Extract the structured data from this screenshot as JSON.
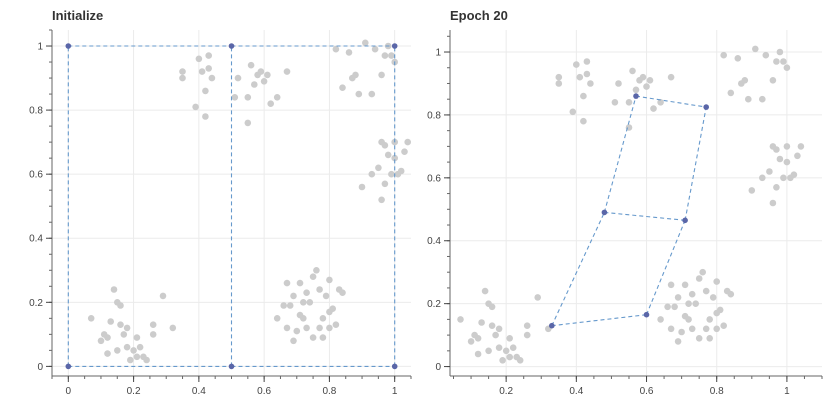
{
  "chart_data": [
    {
      "type": "scatter",
      "title": "Initialize",
      "xlabel": "",
      "ylabel": "",
      "xlim": [
        -0.05,
        1.05
      ],
      "ylim": [
        -0.03,
        1.05
      ],
      "xticks": [
        "0",
        "0.2",
        "0.4",
        "0.6",
        "0.8",
        "1"
      ],
      "yticks": [
        "0",
        "0.2",
        "0.4",
        "0.6",
        "0.8",
        "1"
      ],
      "grid": true,
      "colors": {
        "points": "#cccccc",
        "nodes": "#5a66a8",
        "lattice": "#6699cc"
      },
      "points": [
        [
          0.07,
          0.15
        ],
        [
          0.1,
          0.08
        ],
        [
          0.12,
          0.04
        ],
        [
          0.13,
          0.14
        ],
        [
          0.14,
          0.24
        ],
        [
          0.15,
          0.2
        ],
        [
          0.16,
          0.13
        ],
        [
          0.17,
          0.1
        ],
        [
          0.18,
          0.06
        ],
        [
          0.2,
          0.05
        ],
        [
          0.21,
          0.03
        ],
        [
          0.22,
          0.06
        ],
        [
          0.23,
          0.03
        ],
        [
          0.19,
          0.02
        ],
        [
          0.15,
          0.05
        ],
        [
          0.12,
          0.09
        ],
        [
          0.18,
          0.12
        ],
        [
          0.21,
          0.09
        ],
        [
          0.26,
          0.13
        ],
        [
          0.29,
          0.22
        ],
        [
          0.32,
          0.12
        ],
        [
          0.26,
          0.1
        ],
        [
          0.11,
          0.1
        ],
        [
          0.16,
          0.19
        ],
        [
          0.24,
          0.02
        ],
        [
          0.35,
          0.92
        ],
        [
          0.35,
          0.9
        ],
        [
          0.39,
          0.81
        ],
        [
          0.4,
          0.96
        ],
        [
          0.42,
          0.86
        ],
        [
          0.42,
          0.78
        ],
        [
          0.43,
          0.93
        ],
        [
          0.41,
          0.92
        ],
        [
          0.44,
          0.9
        ],
        [
          0.43,
          0.97
        ],
        [
          0.51,
          0.84
        ],
        [
          0.52,
          0.9
        ],
        [
          0.55,
          0.84
        ],
        [
          0.55,
          0.76
        ],
        [
          0.57,
          0.88
        ],
        [
          0.56,
          0.94
        ],
        [
          0.59,
          0.92
        ],
        [
          0.6,
          0.89
        ],
        [
          0.61,
          0.91
        ],
        [
          0.62,
          0.82
        ],
        [
          0.64,
          0.84
        ],
        [
          0.67,
          0.92
        ],
        [
          0.58,
          0.91
        ],
        [
          0.82,
          0.99
        ],
        [
          0.84,
          0.87
        ],
        [
          0.86,
          0.98
        ],
        [
          0.87,
          0.9
        ],
        [
          0.88,
          0.91
        ],
        [
          0.89,
          0.85
        ],
        [
          0.91,
          1.01
        ],
        [
          0.93,
          0.85
        ],
        [
          0.94,
          0.99
        ],
        [
          0.96,
          0.91
        ],
        [
          0.97,
          0.97
        ],
        [
          0.98,
          1.0
        ],
        [
          1.0,
          0.95
        ],
        [
          0.99,
          0.97
        ],
        [
          0.9,
          0.56
        ],
        [
          0.93,
          0.6
        ],
        [
          0.95,
          0.62
        ],
        [
          0.96,
          0.52
        ],
        [
          0.96,
          0.7
        ],
        [
          0.97,
          0.57
        ],
        [
          0.98,
          0.66
        ],
        [
          1.0,
          0.65
        ],
        [
          1.01,
          0.6
        ],
        [
          1.02,
          0.61
        ],
        [
          1.03,
          0.67
        ],
        [
          1.04,
          0.7
        ],
        [
          0.97,
          0.69
        ],
        [
          1.0,
          0.7
        ],
        [
          0.99,
          0.6
        ],
        [
          0.64,
          0.15
        ],
        [
          0.66,
          0.19
        ],
        [
          0.67,
          0.26
        ],
        [
          0.67,
          0.12
        ],
        [
          0.68,
          0.19
        ],
        [
          0.69,
          0.22
        ],
        [
          0.7,
          0.11
        ],
        [
          0.71,
          0.16
        ],
        [
          0.71,
          0.26
        ],
        [
          0.72,
          0.15
        ],
        [
          0.73,
          0.23
        ],
        [
          0.73,
          0.12
        ],
        [
          0.74,
          0.2
        ],
        [
          0.75,
          0.28
        ],
        [
          0.76,
          0.3
        ],
        [
          0.77,
          0.12
        ],
        [
          0.77,
          0.24
        ],
        [
          0.78,
          0.09
        ],
        [
          0.78,
          0.15
        ],
        [
          0.79,
          0.22
        ],
        [
          0.8,
          0.12
        ],
        [
          0.8,
          0.27
        ],
        [
          0.81,
          0.18
        ],
        [
          0.82,
          0.13
        ],
        [
          0.83,
          0.24
        ],
        [
          0.84,
          0.23
        ],
        [
          0.69,
          0.08
        ],
        [
          0.75,
          0.09
        ],
        [
          0.8,
          0.17
        ],
        [
          0.72,
          0.2
        ]
      ],
      "nodes": [
        [
          0,
          0
        ],
        [
          0.5,
          0
        ],
        [
          1,
          0
        ],
        [
          0,
          1
        ],
        [
          0.5,
          1
        ],
        [
          1,
          1
        ]
      ],
      "edges": [
        [
          0,
          1
        ],
        [
          1,
          2
        ],
        [
          3,
          4
        ],
        [
          4,
          5
        ],
        [
          0,
          3
        ],
        [
          1,
          4
        ],
        [
          2,
          5
        ]
      ]
    },
    {
      "type": "scatter",
      "title": "Epoch 20",
      "xlabel": "",
      "ylabel": "",
      "xlim": [
        0.04,
        1.1
      ],
      "ylim": [
        -0.03,
        1.07
      ],
      "xticks": [
        "0.2",
        "0.4",
        "0.6",
        "0.8",
        "1"
      ],
      "yticks": [
        "0",
        "0.2",
        "0.4",
        "0.6",
        "0.8",
        "1"
      ],
      "grid": true,
      "colors": {
        "points": "#cccccc",
        "nodes": "#5a66a8",
        "lattice": "#6699cc"
      },
      "points": [
        [
          0.07,
          0.15
        ],
        [
          0.1,
          0.08
        ],
        [
          0.12,
          0.04
        ],
        [
          0.13,
          0.14
        ],
        [
          0.14,
          0.24
        ],
        [
          0.15,
          0.2
        ],
        [
          0.16,
          0.13
        ],
        [
          0.17,
          0.1
        ],
        [
          0.18,
          0.06
        ],
        [
          0.2,
          0.05
        ],
        [
          0.21,
          0.03
        ],
        [
          0.22,
          0.06
        ],
        [
          0.23,
          0.03
        ],
        [
          0.19,
          0.02
        ],
        [
          0.15,
          0.05
        ],
        [
          0.12,
          0.09
        ],
        [
          0.18,
          0.12
        ],
        [
          0.21,
          0.09
        ],
        [
          0.26,
          0.13
        ],
        [
          0.29,
          0.22
        ],
        [
          0.32,
          0.12
        ],
        [
          0.26,
          0.1
        ],
        [
          0.11,
          0.1
        ],
        [
          0.16,
          0.19
        ],
        [
          0.24,
          0.02
        ],
        [
          0.35,
          0.92
        ],
        [
          0.35,
          0.9
        ],
        [
          0.39,
          0.81
        ],
        [
          0.4,
          0.96
        ],
        [
          0.42,
          0.86
        ],
        [
          0.42,
          0.78
        ],
        [
          0.43,
          0.93
        ],
        [
          0.41,
          0.92
        ],
        [
          0.44,
          0.9
        ],
        [
          0.43,
          0.97
        ],
        [
          0.51,
          0.84
        ],
        [
          0.52,
          0.9
        ],
        [
          0.55,
          0.84
        ],
        [
          0.55,
          0.76
        ],
        [
          0.57,
          0.88
        ],
        [
          0.56,
          0.94
        ],
        [
          0.59,
          0.92
        ],
        [
          0.6,
          0.89
        ],
        [
          0.61,
          0.91
        ],
        [
          0.62,
          0.82
        ],
        [
          0.64,
          0.84
        ],
        [
          0.67,
          0.92
        ],
        [
          0.58,
          0.91
        ],
        [
          0.82,
          0.99
        ],
        [
          0.84,
          0.87
        ],
        [
          0.86,
          0.98
        ],
        [
          0.87,
          0.9
        ],
        [
          0.88,
          0.91
        ],
        [
          0.89,
          0.85
        ],
        [
          0.91,
          1.01
        ],
        [
          0.93,
          0.85
        ],
        [
          0.94,
          0.99
        ],
        [
          0.96,
          0.91
        ],
        [
          0.97,
          0.97
        ],
        [
          0.98,
          1.0
        ],
        [
          1.0,
          0.95
        ],
        [
          0.99,
          0.97
        ],
        [
          0.9,
          0.56
        ],
        [
          0.93,
          0.6
        ],
        [
          0.95,
          0.62
        ],
        [
          0.96,
          0.52
        ],
        [
          0.96,
          0.7
        ],
        [
          0.97,
          0.57
        ],
        [
          0.98,
          0.66
        ],
        [
          1.0,
          0.65
        ],
        [
          1.01,
          0.6
        ],
        [
          1.02,
          0.61
        ],
        [
          1.03,
          0.67
        ],
        [
          1.04,
          0.7
        ],
        [
          0.97,
          0.69
        ],
        [
          1.0,
          0.7
        ],
        [
          0.99,
          0.6
        ],
        [
          0.64,
          0.15
        ],
        [
          0.66,
          0.19
        ],
        [
          0.67,
          0.26
        ],
        [
          0.67,
          0.12
        ],
        [
          0.68,
          0.19
        ],
        [
          0.69,
          0.22
        ],
        [
          0.7,
          0.11
        ],
        [
          0.71,
          0.16
        ],
        [
          0.71,
          0.26
        ],
        [
          0.72,
          0.15
        ],
        [
          0.73,
          0.23
        ],
        [
          0.73,
          0.12
        ],
        [
          0.74,
          0.2
        ],
        [
          0.75,
          0.28
        ],
        [
          0.76,
          0.3
        ],
        [
          0.77,
          0.12
        ],
        [
          0.77,
          0.24
        ],
        [
          0.78,
          0.09
        ],
        [
          0.78,
          0.15
        ],
        [
          0.79,
          0.22
        ],
        [
          0.8,
          0.12
        ],
        [
          0.8,
          0.27
        ],
        [
          0.81,
          0.18
        ],
        [
          0.82,
          0.13
        ],
        [
          0.83,
          0.24
        ],
        [
          0.84,
          0.23
        ],
        [
          0.69,
          0.08
        ],
        [
          0.75,
          0.09
        ],
        [
          0.8,
          0.17
        ],
        [
          0.72,
          0.2
        ]
      ],
      "nodes": [
        [
          0.33,
          0.13
        ],
        [
          0.6,
          0.165
        ],
        [
          0.48,
          0.49
        ],
        [
          0.71,
          0.465
        ],
        [
          0.57,
          0.86
        ],
        [
          0.77,
          0.825
        ]
      ],
      "edges": [
        [
          0,
          1
        ],
        [
          2,
          3
        ],
        [
          4,
          5
        ],
        [
          0,
          2
        ],
        [
          2,
          4
        ],
        [
          1,
          3
        ],
        [
          3,
          5
        ]
      ]
    }
  ]
}
